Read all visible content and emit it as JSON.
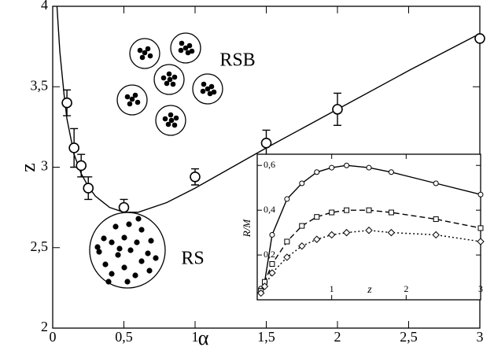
{
  "chart_data": [
    {
      "type": "line",
      "xlabel": "α",
      "ylabel": "z",
      "annotations": [
        "RSB",
        "RS"
      ],
      "xlim": [
        0,
        3
      ],
      "ylim": [
        2,
        4
      ],
      "xticks": [
        0,
        {
          "value": 0.5,
          "label": "0,5"
        },
        1,
        {
          "value": 1.5,
          "label": "1,5"
        },
        2,
        {
          "value": 2.5,
          "label": "2,5"
        },
        3
      ],
      "yticks": [
        2,
        {
          "value": 2.5,
          "label": "2,5"
        },
        3,
        {
          "value": 3.5,
          "label": "3,5"
        },
        4
      ],
      "series": [
        {
          "color": "#000000",
          "dash": "solid",
          "x": [
            0.03,
            0.05,
            0.08,
            0.1,
            0.15,
            0.2,
            0.25,
            0.3,
            0.4,
            0.5,
            0.6,
            0.8,
            1.0,
            1.5,
            2.0,
            2.5,
            3.0
          ],
          "values": [
            4.0,
            3.72,
            3.45,
            3.3,
            3.08,
            2.96,
            2.88,
            2.82,
            2.75,
            2.72,
            2.72,
            2.78,
            2.87,
            3.12,
            3.36,
            3.6,
            3.83
          ]
        },
        {
          "color": "#000000",
          "marker": "circle",
          "x": [
            0.1,
            0.15,
            0.2,
            0.25,
            0.5,
            1.0,
            1.5,
            2.0,
            3.0
          ],
          "values": [
            3.4,
            3.12,
            3.01,
            2.87,
            2.75,
            2.94,
            3.15,
            3.36,
            3.8
          ],
          "errors": [
            0.08,
            0.12,
            0.07,
            0.07,
            0.05,
            0.05,
            0.08,
            0.1,
            0.0
          ]
        }
      ]
    },
    {
      "type": "line",
      "xlabel": "z",
      "ylabel": "R/M",
      "xlim": [
        0,
        3
      ],
      "ylim": [
        0,
        0.65
      ],
      "xticks": [
        0,
        1,
        2,
        3
      ],
      "yticks": [
        0,
        {
          "value": 0.2,
          "label": "0,2"
        },
        {
          "value": 0.4,
          "label": "0,4"
        },
        {
          "value": 0.6,
          "label": "0,6"
        }
      ],
      "series": [
        {
          "color": "#000000",
          "marker": "circle",
          "dash": "solid",
          "x": [
            0.05,
            0.1,
            0.2,
            0.4,
            0.6,
            0.8,
            1.0,
            1.2,
            1.5,
            1.8,
            2.4,
            3.0
          ],
          "values": [
            0.05,
            0.08,
            0.29,
            0.45,
            0.52,
            0.57,
            0.59,
            0.6,
            0.59,
            0.57,
            0.52,
            0.47
          ]
        },
        {
          "color": "#000000",
          "marker": "square",
          "dash": "dashed",
          "x": [
            0.05,
            0.1,
            0.2,
            0.4,
            0.6,
            0.8,
            1.0,
            1.2,
            1.5,
            1.8,
            2.4,
            3.0
          ],
          "values": [
            0.04,
            0.08,
            0.16,
            0.26,
            0.33,
            0.37,
            0.39,
            0.4,
            0.4,
            0.39,
            0.36,
            0.32
          ]
        },
        {
          "color": "#000000",
          "marker": "diamond",
          "dash": "dotted",
          "x": [
            0.05,
            0.1,
            0.2,
            0.4,
            0.6,
            0.8,
            1.0,
            1.2,
            1.5,
            1.8,
            2.4,
            3.0
          ],
          "values": [
            0.03,
            0.06,
            0.12,
            0.19,
            0.24,
            0.27,
            0.29,
            0.3,
            0.31,
            0.3,
            0.29,
            0.26
          ]
        }
      ]
    }
  ]
}
